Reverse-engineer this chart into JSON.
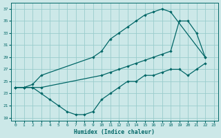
{
  "xlabel": "Humidex (Indice chaleur)",
  "bg_color": "#cce8e8",
  "grid_color": "#99cccc",
  "line_color": "#006666",
  "xlim": [
    -0.5,
    23.5
  ],
  "ylim": [
    18.5,
    38.0
  ],
  "xticks": [
    0,
    1,
    2,
    3,
    4,
    5,
    6,
    7,
    8,
    9,
    10,
    11,
    12,
    13,
    14,
    15,
    16,
    17,
    18,
    19,
    20,
    21,
    22,
    23
  ],
  "yticks": [
    19,
    21,
    23,
    25,
    27,
    29,
    31,
    33,
    35,
    37
  ],
  "line1_x": [
    0,
    1,
    2,
    3,
    9,
    10,
    11,
    12,
    13,
    14,
    15,
    16,
    17,
    18,
    22
  ],
  "line1_y": [
    24,
    24,
    24.5,
    26,
    29,
    30,
    32,
    33,
    34,
    35,
    36,
    36.5,
    37,
    36.5,
    29
  ],
  "line2_x": [
    0,
    1,
    2,
    3,
    10,
    11,
    12,
    13,
    14,
    15,
    16,
    17,
    18,
    19,
    20,
    21,
    22
  ],
  "line2_y": [
    24,
    24,
    24,
    24,
    26,
    26.5,
    27,
    27.5,
    28,
    28.5,
    29,
    29.5,
    30,
    35,
    35,
    33,
    29
  ],
  "line3_x": [
    0,
    1,
    2,
    3,
    4,
    5,
    6,
    7,
    8,
    9,
    10,
    11,
    12,
    13,
    14,
    15,
    16,
    17,
    18,
    19,
    20,
    21,
    22
  ],
  "line3_y": [
    24,
    24,
    24,
    23,
    22,
    21,
    20,
    19.5,
    19.5,
    20,
    22,
    23,
    24,
    25,
    25,
    26,
    26,
    26.5,
    27,
    27,
    26,
    27,
    28
  ]
}
